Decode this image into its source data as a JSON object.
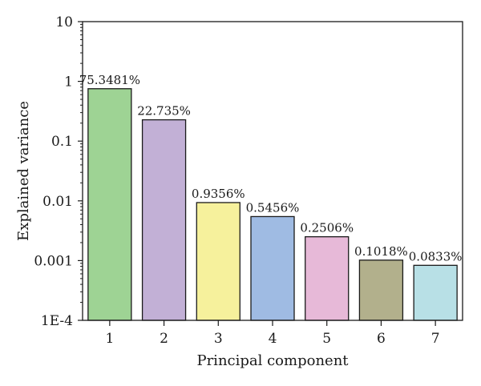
{
  "chart_data": {
    "type": "bar",
    "xlabel": "Principal component",
    "ylabel": "Explained variance",
    "yscale": "log",
    "ylim": [
      0.0001,
      10
    ],
    "yticks": [
      "1E-4",
      "0.001",
      "0.01",
      "0.1",
      "1",
      "10"
    ],
    "categories": [
      "1",
      "2",
      "3",
      "4",
      "5",
      "6",
      "7"
    ],
    "values": [
      0.753481,
      0.22735,
      0.009356,
      0.005456,
      0.002506,
      0.001018,
      0.000833
    ],
    "data_labels": [
      "75.3481%",
      "22.735%",
      "0.9356%",
      "0.5456%",
      "0.2506%",
      "0.1018%",
      "0.0833%"
    ],
    "bar_colors": [
      "#9ed394",
      "#c2b0d6",
      "#f6f19c",
      "#9fbbe3",
      "#e7b9d8",
      "#b2b08c",
      "#b8e0e6"
    ],
    "grid": false,
    "legend": "none"
  }
}
